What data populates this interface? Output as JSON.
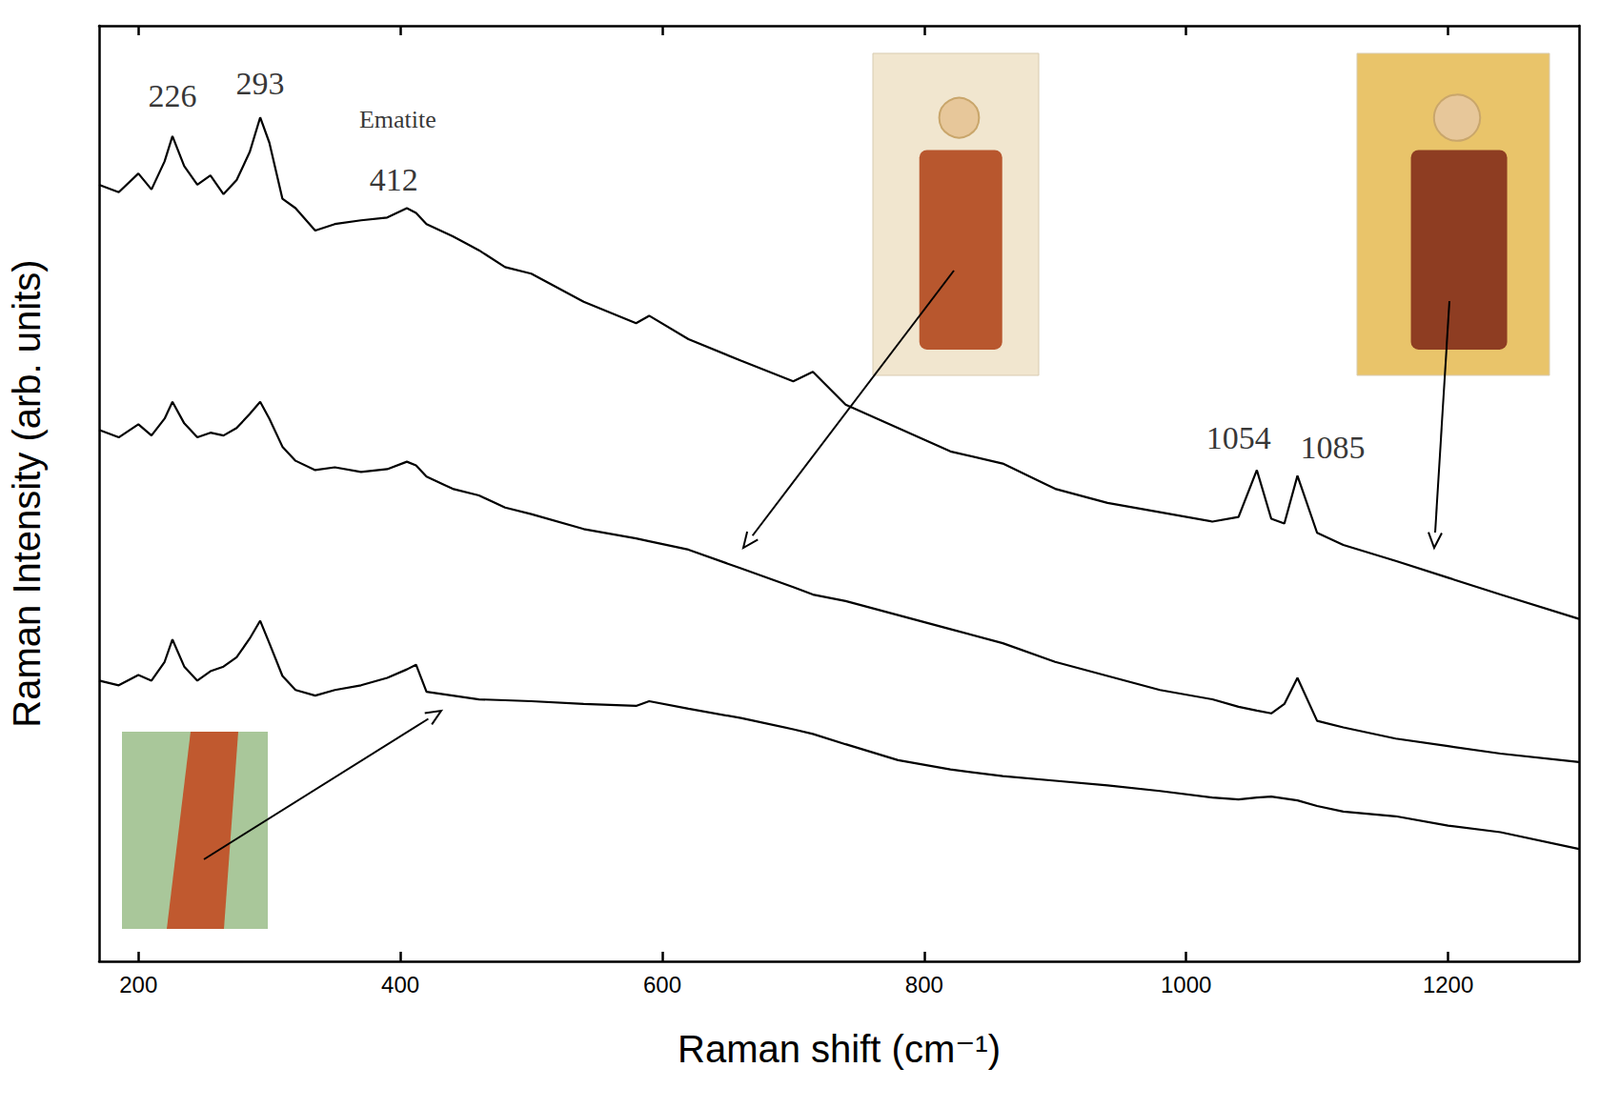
{
  "chart_data": {
    "type": "line",
    "x_label": "Raman shift (cm⁻¹)",
    "y_label": "Raman Intensity (arb. units)",
    "x": [
      170,
      185,
      200,
      210,
      220,
      226,
      235,
      245,
      255,
      265,
      275,
      285,
      293,
      300,
      310,
      320,
      335,
      350,
      370,
      390,
      405,
      412,
      420,
      440,
      460,
      480,
      500,
      540,
      580,
      590,
      620,
      660,
      700,
      715,
      740,
      780,
      820,
      860,
      900,
      940,
      980,
      1020,
      1040,
      1054,
      1065,
      1075,
      1085,
      1100,
      1120,
      1160,
      1200,
      1240,
      1300
    ],
    "series": [
      {
        "color": "#000000",
        "values": [
          83.0,
          82.2,
          84.2,
          82.5,
          85.5,
          88.2,
          85.0,
          83.0,
          84.0,
          82.0,
          83.5,
          86.5,
          90.2,
          87.5,
          81.5,
          80.5,
          78.1,
          78.8,
          79.2,
          79.5,
          80.5,
          80.0,
          78.8,
          77.5,
          76.0,
          74.2,
          73.5,
          70.5,
          68.2,
          69.0,
          66.5,
          64.2,
          62.0,
          63.0,
          59.5,
          57.0,
          54.5,
          53.2,
          50.5,
          49.0,
          48.0,
          47.0,
          47.5,
          52.5,
          47.3,
          46.8,
          51.9,
          45.8,
          44.5,
          42.8,
          41.0,
          39.2,
          36.6
        ]
      },
      {
        "color": "#000000",
        "values": [
          56.8,
          56.0,
          57.4,
          56.2,
          58.0,
          59.8,
          57.5,
          56.0,
          56.5,
          56.2,
          57.0,
          58.5,
          59.8,
          58.0,
          55.0,
          53.5,
          52.5,
          52.8,
          52.3,
          52.6,
          53.4,
          53.0,
          51.8,
          50.5,
          49.8,
          48.5,
          47.8,
          46.2,
          45.2,
          44.9,
          44.0,
          42.0,
          40.0,
          39.2,
          38.5,
          37.0,
          35.5,
          34.0,
          32.0,
          30.5,
          29.0,
          28.0,
          27.2,
          26.8,
          26.5,
          27.5,
          30.3,
          25.7,
          25.0,
          23.8,
          23.0,
          22.2,
          21.3
        ]
      },
      {
        "color": "#000000",
        "values": [
          30.0,
          29.5,
          30.6,
          30.0,
          32.0,
          34.4,
          31.5,
          30.0,
          31.0,
          31.5,
          32.5,
          34.5,
          36.4,
          34.0,
          30.5,
          29.0,
          28.4,
          29.0,
          29.5,
          30.3,
          31.2,
          31.7,
          28.8,
          28.4,
          28.0,
          27.9,
          27.8,
          27.5,
          27.3,
          27.8,
          27.0,
          26.0,
          24.8,
          24.3,
          23.2,
          21.5,
          20.5,
          19.8,
          19.3,
          18.8,
          18.2,
          17.5,
          17.3,
          17.5,
          17.6,
          17.4,
          17.2,
          16.6,
          16.0,
          15.5,
          14.5,
          13.8,
          12.0
        ]
      }
    ],
    "annotations": [
      {
        "text": "226",
        "x": 226,
        "y": 92.5
      },
      {
        "text": "293",
        "x": 293,
        "y": 93.8
      },
      {
        "text": "Ematite",
        "x": 398,
        "y": 90.0
      },
      {
        "text": "412",
        "x": 395,
        "y": 83.6
      },
      {
        "text": "1054",
        "x": 1040,
        "y": 56.0
      },
      {
        "text": "1085",
        "x": 1112,
        "y": 54.9
      }
    ],
    "xlim": [
      170,
      1300
    ],
    "xticks": [
      200,
      400,
      600,
      800,
      1000,
      1200
    ],
    "ylim": [
      0,
      100
    ],
    "yticks": [],
    "tick_labels": "x",
    "grid": false
  }
}
